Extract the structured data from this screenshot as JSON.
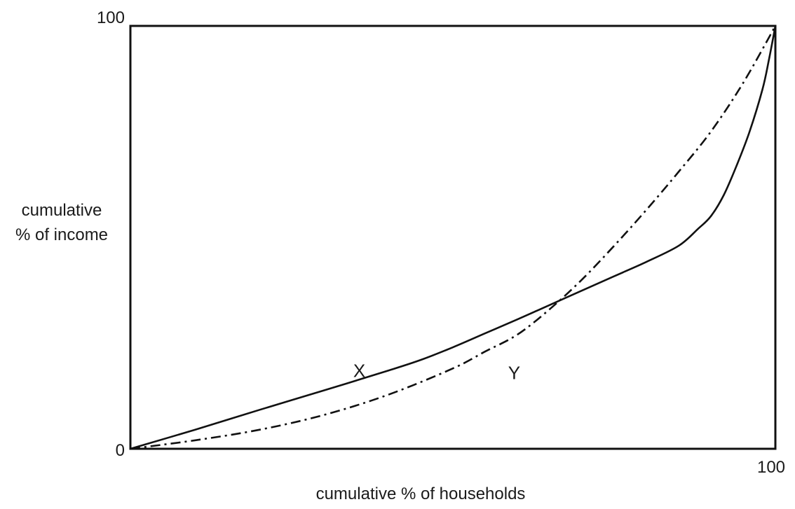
{
  "chart_data": {
    "type": "line",
    "title": "",
    "xlabel": "cumulative % of households",
    "ylabel_lines": [
      "cumulative",
      "% of income"
    ],
    "xlim": [
      0,
      100
    ],
    "ylim": [
      0,
      100
    ],
    "x_ticks": [
      {
        "value": 100,
        "label": "100"
      }
    ],
    "y_ticks": [
      {
        "value": 0,
        "label": "0"
      },
      {
        "value": 100,
        "label": "100"
      }
    ],
    "grid": false,
    "series": [
      {
        "label": "X",
        "style": "solid",
        "label_at": [
          35.5,
          17
        ],
        "points": [
          [
            0,
            0
          ],
          [
            10,
            4.5
          ],
          [
            20,
            9.2
          ],
          [
            30,
            13.8
          ],
          [
            40,
            18.5
          ],
          [
            45,
            21
          ],
          [
            50,
            24
          ],
          [
            55,
            27.3
          ],
          [
            60,
            30.6
          ],
          [
            65,
            34
          ],
          [
            70,
            37.4
          ],
          [
            75,
            40.8
          ],
          [
            80,
            44.2
          ],
          [
            85,
            48
          ],
          [
            88,
            52
          ],
          [
            90,
            55
          ],
          [
            92,
            60
          ],
          [
            94,
            67
          ],
          [
            96,
            75
          ],
          [
            98,
            85
          ],
          [
            99,
            92
          ],
          [
            100,
            100
          ]
        ]
      },
      {
        "label": "Y",
        "style": "dash-dot",
        "label_at": [
          59.5,
          16.5
        ],
        "points": [
          [
            0,
            0
          ],
          [
            10,
            2
          ],
          [
            20,
            4.5
          ],
          [
            30,
            8
          ],
          [
            40,
            12.8
          ],
          [
            50,
            19
          ],
          [
            55,
            23
          ],
          [
            60,
            27
          ],
          [
            65,
            33
          ],
          [
            70,
            40
          ],
          [
            75,
            48
          ],
          [
            80,
            56.5
          ],
          [
            85,
            65.5
          ],
          [
            90,
            75
          ],
          [
            95,
            86.5
          ],
          [
            100,
            100
          ]
        ]
      }
    ],
    "colors": {
      "line": "#111111",
      "frame": "#111111",
      "text": "#1a1a1a"
    }
  }
}
